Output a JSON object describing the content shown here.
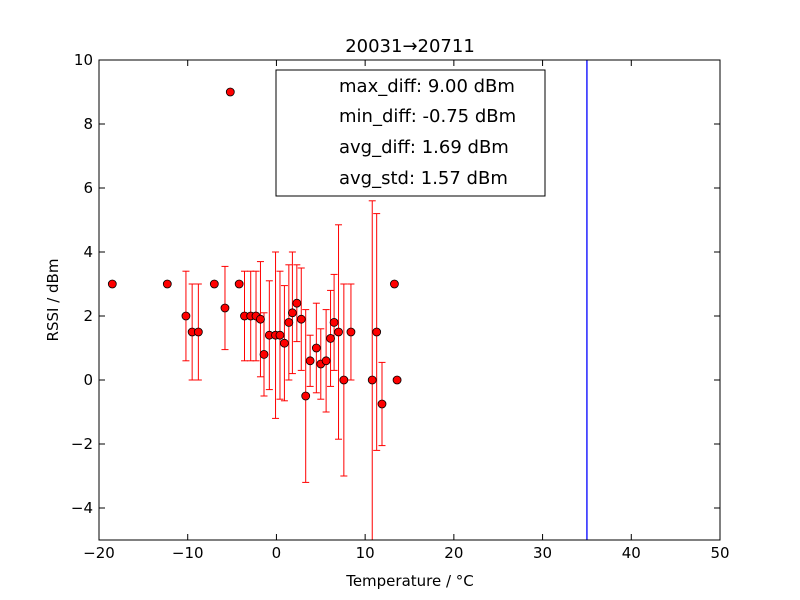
{
  "chart_data": {
    "type": "scatter",
    "title": "20031→20711",
    "xlabel": "Temperature / °C",
    "ylabel": "RSSI / dBm",
    "xlim": [
      -20,
      50
    ],
    "ylim": [
      -5,
      10
    ],
    "xticks": [
      -20,
      -10,
      0,
      10,
      20,
      30,
      40,
      50
    ],
    "yticks": [
      -4,
      -2,
      0,
      2,
      4,
      6,
      8,
      10
    ],
    "xtick_labels": [
      "−20",
      "−10",
      "0",
      "10",
      "20",
      "30",
      "40",
      "50"
    ],
    "ytick_labels": [
      "−4",
      "−2",
      "0",
      "2",
      "4",
      "6",
      "8",
      "10"
    ],
    "grid": false,
    "marker_color": "#ff0000",
    "errorbar_color": "#ff0000",
    "vline": {
      "x": 35,
      "color": "#0000ff"
    },
    "legend": {
      "placement": "top-center",
      "entries": [
        "max_diff: 9.00 dBm",
        "min_diff: -0.75 dBm",
        "avg_diff: 1.69 dBm",
        "avg_std: 1.57 dBm"
      ]
    },
    "points": [
      {
        "x": -18.5,
        "y": 3.0,
        "err": 0
      },
      {
        "x": -12.3,
        "y": 3.0,
        "err": 0
      },
      {
        "x": -10.2,
        "y": 2.0,
        "err": 1.4
      },
      {
        "x": -9.5,
        "y": 1.5,
        "err": 1.5
      },
      {
        "x": -8.8,
        "y": 1.5,
        "err": 1.5
      },
      {
        "x": -7.0,
        "y": 3.0,
        "err": 0
      },
      {
        "x": -5.8,
        "y": 2.25,
        "err": 1.3
      },
      {
        "x": -5.2,
        "y": 9.0,
        "err": 0
      },
      {
        "x": -4.2,
        "y": 3.0,
        "err": 0
      },
      {
        "x": -3.6,
        "y": 2.0,
        "err": 1.4
      },
      {
        "x": -2.9,
        "y": 2.0,
        "err": 1.4
      },
      {
        "x": -2.3,
        "y": 2.0,
        "err": 1.4
      },
      {
        "x": -1.8,
        "y": 1.9,
        "err": 1.8
      },
      {
        "x": -1.4,
        "y": 0.8,
        "err": 1.3
      },
      {
        "x": -0.8,
        "y": 1.4,
        "err": 1.7
      },
      {
        "x": -0.1,
        "y": 1.4,
        "err": 2.6
      },
      {
        "x": 0.4,
        "y": 1.4,
        "err": 2.0
      },
      {
        "x": 0.9,
        "y": 1.15,
        "err": 1.8
      },
      {
        "x": 1.4,
        "y": 1.8,
        "err": 1.8
      },
      {
        "x": 1.8,
        "y": 2.1,
        "err": 1.9
      },
      {
        "x": 2.3,
        "y": 2.4,
        "err": 1.2
      },
      {
        "x": 2.8,
        "y": 1.9,
        "err": 1.6
      },
      {
        "x": 3.3,
        "y": -0.5,
        "err": 2.7
      },
      {
        "x": 3.8,
        "y": 0.6,
        "err": 0.8
      },
      {
        "x": 4.5,
        "y": 1.0,
        "err": 1.4
      },
      {
        "x": 5.0,
        "y": 0.5,
        "err": 1.1
      },
      {
        "x": 5.6,
        "y": 0.6,
        "err": 1.6
      },
      {
        "x": 6.1,
        "y": 1.3,
        "err": 1.5
      },
      {
        "x": 6.5,
        "y": 1.8,
        "err": 1.5
      },
      {
        "x": 7.0,
        "y": 1.5,
        "err": 3.35
      },
      {
        "x": 7.6,
        "y": 0.0,
        "err": 3.0
      },
      {
        "x": 8.4,
        "y": 1.5,
        "err": 1.5
      },
      {
        "x": 10.8,
        "y": 0.0,
        "err": 5.6
      },
      {
        "x": 11.3,
        "y": 1.5,
        "err": 3.7
      },
      {
        "x": 11.9,
        "y": -0.75,
        "err": 1.3
      },
      {
        "x": 13.3,
        "y": 3.0,
        "err": 0
      },
      {
        "x": 13.6,
        "y": 0.0,
        "err": 0
      }
    ]
  }
}
